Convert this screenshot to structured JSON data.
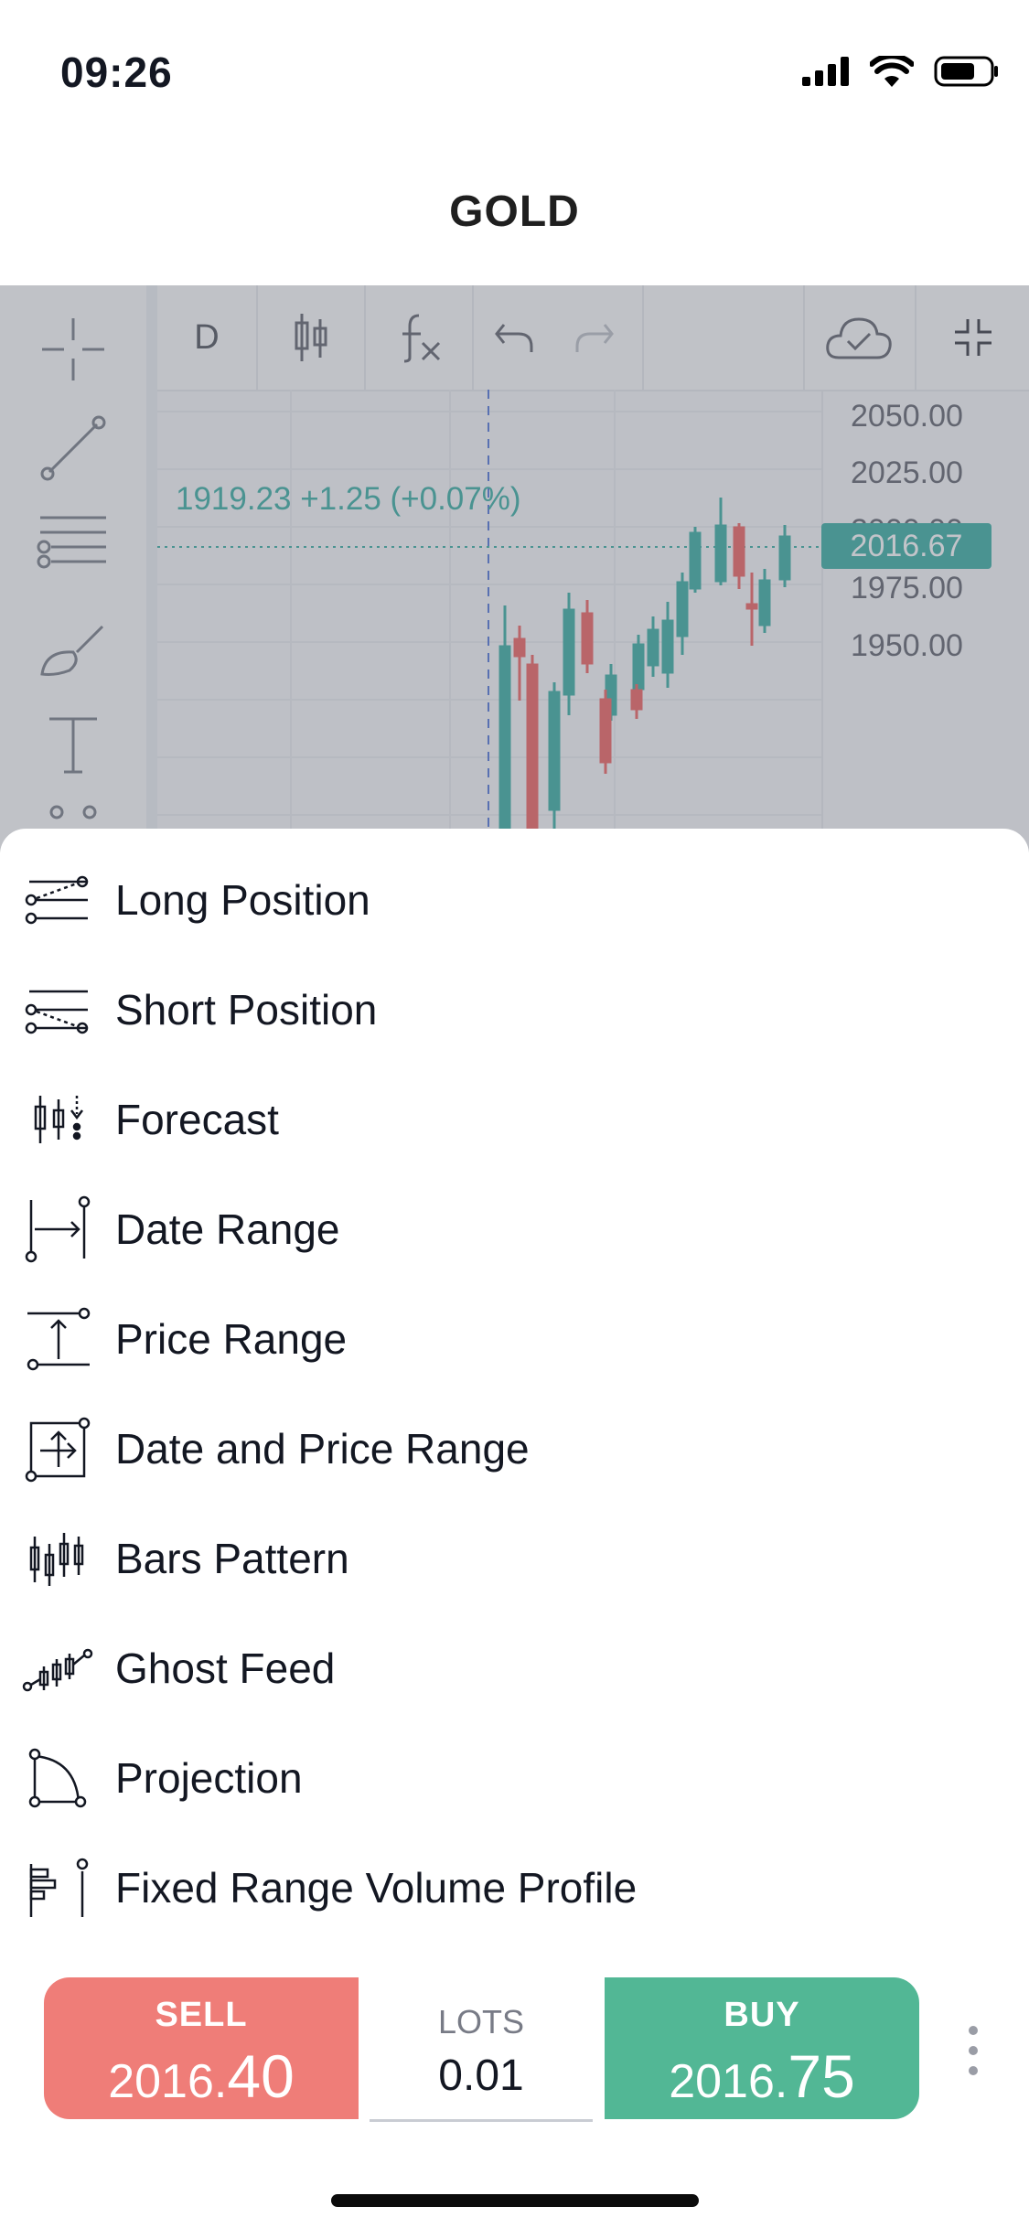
{
  "status_bar": {
    "time": "09:26",
    "icons": [
      "signal-icon",
      "wifi-icon",
      "battery-icon"
    ]
  },
  "header": {
    "title": "GOLD"
  },
  "chart_toolbar": {
    "interval": "D",
    "left_tools": [
      "crosshair-icon",
      "trend-line-icon",
      "fib-retracement-icon",
      "brush-icon",
      "text-icon",
      "patterns-icon"
    ],
    "buttons": [
      "candles-icon",
      "indicators-icon",
      "undo-icon",
      "redo-icon",
      "cloud-save-icon",
      "collapse-icon"
    ]
  },
  "chart": {
    "ohlc_label": "1919.23  +1.25 (+0.07%)",
    "price_levels": [
      "2050.00",
      "2025.00",
      "2000.00",
      "1975.00",
      "1950.00"
    ],
    "current_price": "2016.67",
    "up_color": "#26a69a",
    "down_color": "#ef5350"
  },
  "menu": {
    "items": [
      {
        "label": "Long Position",
        "icon": "long-position-icon"
      },
      {
        "label": "Short Position",
        "icon": "short-position-icon"
      },
      {
        "label": "Forecast",
        "icon": "forecast-icon"
      },
      {
        "label": "Date Range",
        "icon": "date-range-icon"
      },
      {
        "label": "Price Range",
        "icon": "price-range-icon"
      },
      {
        "label": "Date and Price Range",
        "icon": "date-price-range-icon"
      },
      {
        "label": "Bars Pattern",
        "icon": "bars-pattern-icon"
      },
      {
        "label": "Ghost Feed",
        "icon": "ghost-feed-icon"
      },
      {
        "label": "Projection",
        "icon": "projection-icon"
      },
      {
        "label": "Fixed Range Volume Profile",
        "icon": "volume-profile-icon"
      }
    ]
  },
  "trade": {
    "sell": {
      "label": "SELL",
      "price_main": "2016.",
      "price_big": "40",
      "color": "#ef7d78"
    },
    "lots": {
      "label": "LOTS",
      "value": "0.01"
    },
    "buy": {
      "label": "BUY",
      "price_main": "2016.",
      "price_big": "75",
      "color": "#52b795"
    }
  }
}
